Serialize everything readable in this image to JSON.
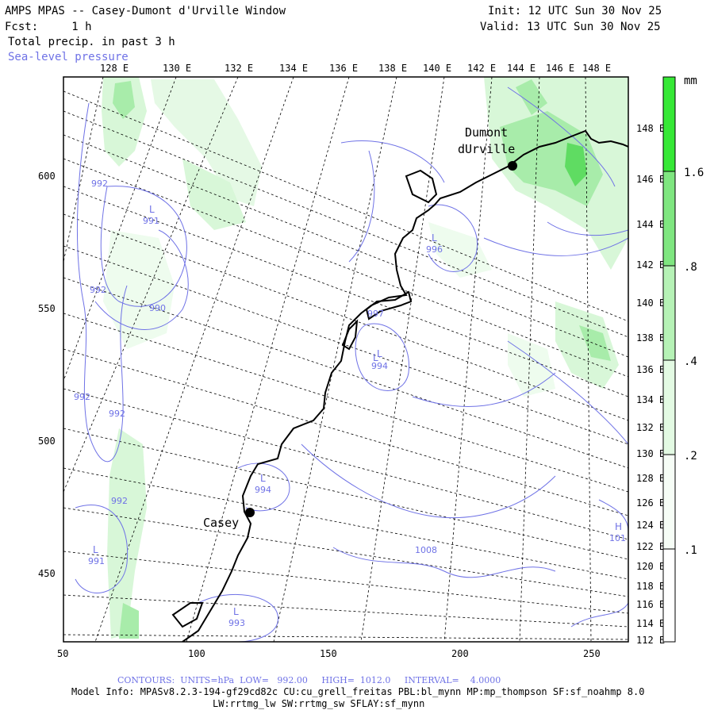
{
  "header": {
    "title": "AMPS MPAS -- Casey-Dumont d'Urville Window",
    "fcst": "Fcst:     1 h",
    "field": "Total precip. in past 3 h",
    "overlay": "Sea-level pressure",
    "init": "Init: 12 UTC Sun 30 Nov 25",
    "valid": "Valid: 13 UTC Sun 30 Nov 25"
  },
  "map": {
    "top_lon_labels": [
      "128 E",
      "130 E",
      "132 E",
      "134 E",
      "136 E",
      "138 E",
      "140 E",
      "142 E",
      "144 E",
      "146 E",
      "148 E"
    ],
    "right_lon_labels": [
      "148 E",
      "146 E",
      "144 E",
      "142 E",
      "140 E",
      "138 E",
      "136 E",
      "134 E",
      "132 E",
      "130 E",
      "128 E",
      "126 E",
      "124 E",
      "122 E",
      "120 E",
      "118 E",
      "116 E",
      "114 E",
      "112 E"
    ],
    "x_ticks": [
      "50",
      "100",
      "150",
      "200",
      "250"
    ],
    "y_ticks": [
      "600",
      "550",
      "500",
      "450"
    ],
    "stations": [
      {
        "name_line1": "Dumont",
        "name_line2": "dUrville"
      },
      {
        "name_line1": "Casey",
        "name_line2": ""
      }
    ],
    "pressure_labels": [
      "992",
      "991",
      "992",
      "990",
      "992",
      "992",
      "992",
      "991",
      "997",
      "994",
      "996",
      "994",
      "993",
      "1008",
      "101"
    ],
    "centers": [
      "L",
      "L",
      "L",
      "L",
      "L",
      "L",
      "L",
      "H"
    ],
    "colors": {
      "contour": "#6f72e6",
      "coast": "#000000",
      "grid": "#000000",
      "precip_light": "#d8f7d8",
      "precip_mid": "#a8ecaa",
      "precip_strong": "#5fdc62"
    }
  },
  "colorbar": {
    "unit": "mm",
    "labels": [
      "1.6",
      ".8",
      ".4",
      ".2",
      ".1"
    ],
    "colors": [
      "#36e836",
      "#7fe680",
      "#b6f2b6",
      "#e3fae3",
      "#f6fdf6"
    ]
  },
  "footer": {
    "contours": "CONTOURS:  UNITS=hPa  LOW=   992.00     HIGH=  1012.0     INTERVAL=    4.0000",
    "model_info": "Model Info: MPASv8.2.3-194-gf29cd82c CU:cu_grell_freitas PBL:bl_mynn MP:mp_thompson SF:sf_noahmp 8.0",
    "model_info2": "LW:rrtmg_lw SW:rrtmg_sw SFLAY:sf_mynn"
  }
}
